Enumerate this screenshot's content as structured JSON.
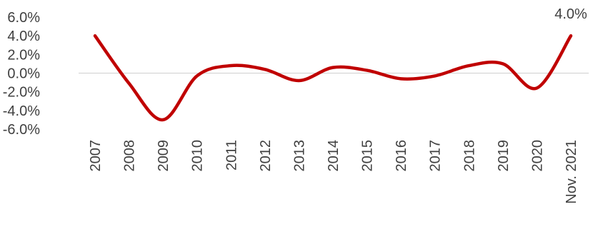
{
  "chart_data": {
    "type": "line",
    "title": "",
    "xlabel": "",
    "ylabel": "",
    "categories": [
      "2007",
      "2008",
      "2009",
      "2010",
      "2011",
      "2012",
      "2013",
      "2014",
      "2015",
      "2016",
      "2017",
      "2018",
      "2019",
      "2020",
      "Nov. 2021"
    ],
    "series": [
      {
        "values": [
          4.0,
          -1.1,
          -5.0,
          -0.3,
          0.8,
          0.4,
          -0.8,
          0.6,
          0.3,
          -0.6,
          -0.3,
          0.8,
          1.0,
          -1.6,
          4.0
        ],
        "color": "#c00000"
      }
    ],
    "yticks": [
      "6.0%",
      "4.0%",
      "2.0%",
      "0.0%",
      "-2.0%",
      "-4.0%",
      "-6.0%"
    ],
    "ylim": [
      -6,
      6
    ],
    "data_labels": [
      {
        "index": 14,
        "text": "4.0%"
      }
    ],
    "grid": false,
    "zero_line": true,
    "legend": "none"
  }
}
